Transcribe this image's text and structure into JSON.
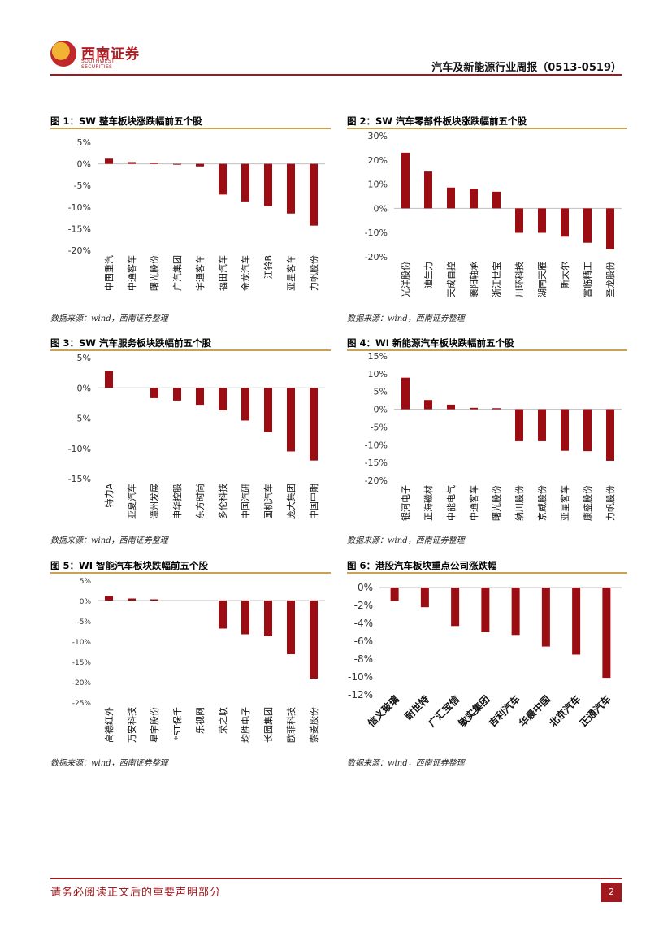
{
  "header": {
    "logo_cn": "西南证券",
    "logo_en": "SOUTHWEST SECURITIES",
    "report_title": "汽车及新能源行业周报（0513-0519）"
  },
  "footer": {
    "disclaimer": "请务必阅读正文后的重要声明部分",
    "page_number": "2"
  },
  "colors": {
    "bar": "#9b0d12",
    "accent": "#a0191e",
    "rule": "#c9a255"
  },
  "figures": [
    {
      "title": "图 1：SW 整车板块涨跌幅前五个股",
      "source": "数据来源：wind，西南证券整理"
    },
    {
      "title": "图 2：SW 汽车零部件板块涨跌幅前五个股",
      "source": "数据来源：wind，西南证券整理"
    },
    {
      "title": "图 3：SW 汽车服务板块跌幅前五个股",
      "source": "数据来源：wind，西南证券整理"
    },
    {
      "title": "图 4：WI 新能源汽车板块跌幅前五个股",
      "source": "数据来源：wind，西南证券整理"
    },
    {
      "title": "图 5：WI 智能汽车板块跌幅前五个股",
      "source": "数据来源：wind，西南证券整理"
    },
    {
      "title": "图 6：港股汽车板块重点公司涨跌幅",
      "source": "数据来源：wind，西南证券整理"
    }
  ],
  "chart_data": [
    {
      "type": "bar",
      "categories": [
        "中国重汽",
        "中通客车",
        "曙光股份",
        "广汽集团",
        "宇通客车",
        "福田汽车",
        "金龙汽车",
        "江铃B",
        "亚星客车",
        "力帆股份"
      ],
      "values": [
        1.2,
        0.4,
        0.3,
        -0.2,
        -0.6,
        -7.1,
        -8.7,
        -9.8,
        -11.5,
        -14.3
      ],
      "ylim": [
        -20,
        5
      ],
      "yticks": [
        5,
        0,
        -5,
        -10,
        -15,
        -20
      ],
      "unit": "%",
      "grid": false
    },
    {
      "type": "bar",
      "categories": [
        "光洋股份",
        "迪生力",
        "天成自控",
        "襄阳轴承",
        "浙江世宝",
        "川环科技",
        "湖南天雁",
        "斯太尔",
        "富临精工",
        "圣龙股份"
      ],
      "values": [
        23.0,
        15.2,
        8.6,
        8.1,
        6.9,
        -10.1,
        -10.1,
        -11.7,
        -14.2,
        -16.9
      ],
      "ylim": [
        -20,
        30
      ],
      "yticks": [
        30,
        20,
        10,
        0,
        -10,
        -20
      ],
      "unit": "%",
      "grid": false
    },
    {
      "type": "bar",
      "categories": [
        "特力A",
        "亚夏汽车",
        "漳州发展",
        "申华控股",
        "东方时尚",
        "多伦科技",
        "中国汽研",
        "国机汽车",
        "庞大集团",
        "中国中期"
      ],
      "values": [
        2.8,
        0.0,
        -1.7,
        -2.1,
        -2.8,
        -3.7,
        -5.4,
        -7.3,
        -10.5,
        -12.0
      ],
      "ylim": [
        -15,
        5
      ],
      "yticks": [
        5,
        0,
        -5,
        -10,
        -15
      ],
      "unit": "%",
      "grid": false
    },
    {
      "type": "bar",
      "categories": [
        "银河电子",
        "正海磁材",
        "中能电气",
        "中通客车",
        "曙光股份",
        "纳川股份",
        "京威股份",
        "亚星客车",
        "康盛股份",
        "力帆股份"
      ],
      "values": [
        8.9,
        2.6,
        1.3,
        0.4,
        0.3,
        -9.0,
        -9.0,
        -11.7,
        -11.8,
        -14.5
      ],
      "ylim": [
        -20,
        15
      ],
      "yticks": [
        15,
        10,
        5,
        0,
        -5,
        -10,
        -15,
        -20
      ],
      "unit": "%",
      "grid": false
    },
    {
      "type": "bar",
      "categories": [
        "高德红外",
        "万安科技",
        "星宇股份",
        "*ST保千",
        "乐视网",
        "荣之联",
        "均胜电子",
        "长园集团",
        "欧菲科技",
        "索菱股份"
      ],
      "values": [
        1.1,
        0.5,
        0.3,
        0.0,
        0.0,
        -6.9,
        -8.3,
        -8.8,
        -13.2,
        -19.2
      ],
      "ylim": [
        -25,
        5
      ],
      "yticks": [
        5,
        0,
        -5,
        -10,
        -15,
        -20,
        -25
      ],
      "unit": "%",
      "grid": false
    },
    {
      "type": "bar",
      "categories": [
        "信义玻璃",
        "耐世特",
        "广汇宝信",
        "敏实集团",
        "吉利汽车",
        "华晨中国",
        "北京汽车",
        "正通汽车"
      ],
      "values": [
        -1.5,
        -2.2,
        -4.3,
        -5.0,
        -5.3,
        -6.6,
        -7.5,
        -10.1
      ],
      "ylim": [
        -12,
        0
      ],
      "yticks": [
        0,
        -2,
        -4,
        -6,
        -8,
        -10,
        -12
      ],
      "unit": "%",
      "grid": false
    }
  ]
}
